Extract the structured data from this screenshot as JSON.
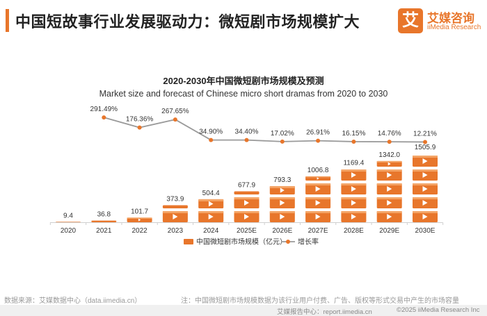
{
  "header": {
    "title": "中国短故事行业发展驱动力：微短剧市场规模扩大",
    "logo_mark": "艾",
    "logo_cn": "艾媒咨询",
    "logo_en": "iiMedia Research"
  },
  "chart_data": {
    "type": "bar+line",
    "title": "2020-2030年中国微短剧市场规模及预测",
    "subtitle": "Market size and forecast of Chinese micro short dramas from 2020 to 2030",
    "categories": [
      "2020",
      "2021",
      "2022",
      "2023",
      "2024",
      "2025E",
      "2026E",
      "2027E",
      "2028E",
      "2029E",
      "2030E"
    ],
    "series": [
      {
        "name": "中国微短剧市场规模（亿元）",
        "type": "bar",
        "values": [
          9.4,
          36.8,
          101.7,
          373.9,
          504.4,
          677.9,
          793.3,
          1006.8,
          1169.4,
          1342.0,
          1505.9
        ],
        "labels": [
          "9.4",
          "36.8",
          "101.7",
          "373.9",
          "504.4",
          "677.9",
          "793.3",
          "1006.8",
          "1169.4",
          "1342.0",
          "1505.9"
        ],
        "color": "#e8762b"
      },
      {
        "name": "增长率",
        "type": "line",
        "values": [
          null,
          291.49,
          176.36,
          267.65,
          34.9,
          34.4,
          17.02,
          26.91,
          16.15,
          14.76,
          12.21
        ],
        "labels": [
          "",
          "291.49%",
          "176.36%",
          "267.65%",
          "34.90%",
          "34.40%",
          "17.02%",
          "26.91%",
          "16.15%",
          "14.76%",
          "12.21%"
        ],
        "color": "#e8762b",
        "line_color": "#9a9a9a"
      }
    ],
    "ylim_bar": [
      0,
      1600
    ],
    "ylim_line": [
      0,
      300
    ],
    "legend_position": "bottom-center"
  },
  "footer": {
    "source": "数据来源：艾媒数据中心（data.iimedia.cn）",
    "note": "注：中国微短剧市场规模数据为该行业用户付费、广告、版权等形式交易中产生的市场容量",
    "bottom_left": "艾媒报告中心：report.iimedia.cn",
    "bottom_right": "©2025  iiMedia Research Inc"
  }
}
